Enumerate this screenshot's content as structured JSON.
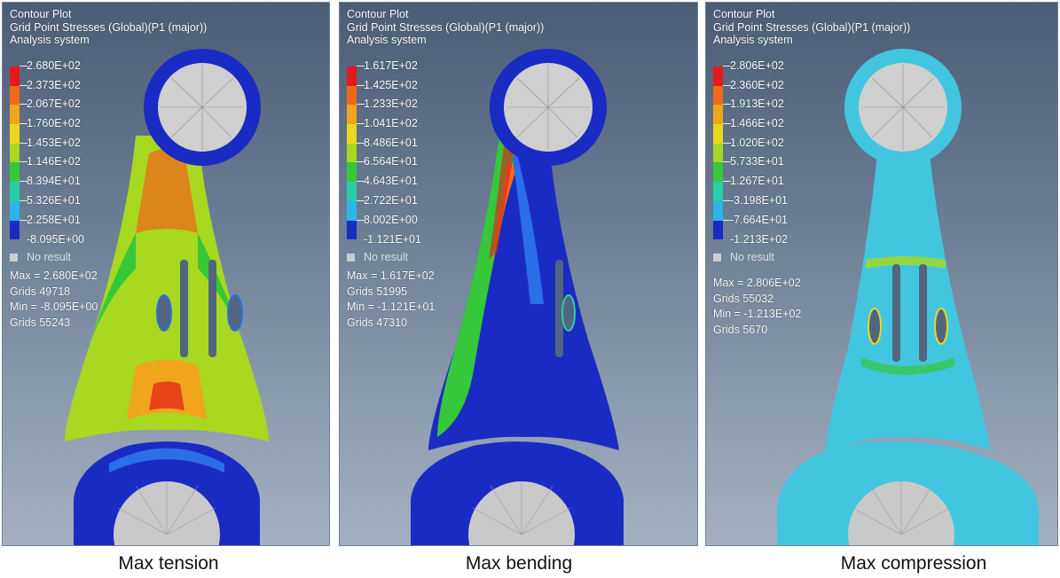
{
  "panels": [
    {
      "header": [
        "Contour Plot",
        "Grid Point Stresses (Global)(P1 (major))",
        "Analysis system"
      ],
      "legend_values": [
        "2.680E+02",
        "2.373E+02",
        "2.067E+02",
        "1.760E+02",
        "1.453E+02",
        "1.146E+02",
        "8.394E+01",
        "5.326E+01",
        "2.258E+01",
        "-8.095E+00"
      ],
      "no_result": "No result",
      "stats": [
        "Max = 2.680E+02",
        "Grids 49718",
        "Min = -8.095E+00",
        "Grids 55243"
      ],
      "caption": "Max tension"
    },
    {
      "header": [
        "Contour Plot",
        "Grid Point Stresses (Global)(P1 (major))",
        "Analysis system"
      ],
      "legend_values": [
        "1.617E+02",
        "1.425E+02",
        "1.233E+02",
        "1.041E+02",
        "8.486E+01",
        "6.564E+01",
        "4.643E+01",
        "2.722E+01",
        "8.002E+00",
        "-1.121E+01"
      ],
      "no_result": "No result",
      "stats": [
        "Max = 1.617E+02",
        "Grids 51995",
        "Min = -1.121E+01",
        "Grids 47310"
      ],
      "caption": "Max bending"
    },
    {
      "header": [
        "Contour Plot",
        "Grid Point Stresses (Global)(P1 (major))",
        "Analysis system"
      ],
      "legend_values": [
        "2.806E+02",
        "2.360E+02",
        "1.913E+02",
        "1.466E+02",
        "1.020E+02",
        "5.733E+01",
        "1.267E+01",
        "-3.198E+01",
        "-7.664E+01",
        "-1.213E+02"
      ],
      "no_result": "No result",
      "stats": [
        "Max = 2.806E+02",
        "Grids 55032",
        "Min = -1.213E+02",
        "Grids 5670"
      ],
      "caption": "Max compression"
    }
  ],
  "colors": {
    "legend_bands": [
      "#e41a1a",
      "#ee6a1a",
      "#f0a51c",
      "#e9d81e",
      "#a8d820",
      "#36c83a",
      "#27cfa8",
      "#2bb5e8",
      "#2a6ee8",
      "#1010b0"
    ],
    "contour_blue": "#1a2bc4",
    "contour_cyan": "#42c6e0",
    "contour_mesh_grey": "#c8c8c8"
  }
}
